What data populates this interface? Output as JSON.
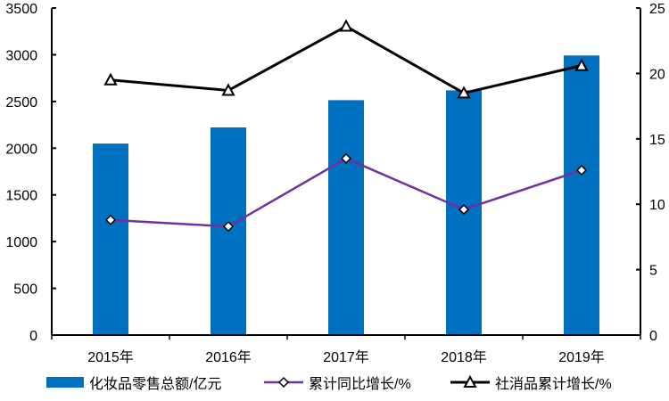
{
  "chart_data": {
    "type": "bar+line",
    "categories": [
      "2015年",
      "2016年",
      "2017年",
      "2018年",
      "2019年"
    ],
    "left_axis": {
      "ylim": [
        0,
        3500
      ],
      "ticks": [
        0,
        500,
        1000,
        1500,
        2000,
        2500,
        3000,
        3500
      ]
    },
    "right_axis": {
      "ylim": [
        0,
        25
      ],
      "ticks": [
        0,
        5,
        10,
        15,
        20,
        25
      ]
    },
    "series": [
      {
        "name": "化妆品零售总额/亿元",
        "type": "bar",
        "axis": "left",
        "color": "#0070C0",
        "values": [
          2049,
          2222,
          2514,
          2619,
          2992
        ]
      },
      {
        "name": "累计同比增长/%",
        "type": "line",
        "axis": "right",
        "marker": "diamond",
        "color": "#7030A0",
        "values": [
          8.8,
          8.3,
          13.5,
          9.6,
          12.6
        ]
      },
      {
        "name": "社消品累计增长/%",
        "type": "line",
        "axis": "right",
        "marker": "triangle",
        "color": "#000000",
        "values": [
          19.5,
          18.7,
          23.6,
          18.5,
          20.6
        ]
      }
    ],
    "grid": false,
    "legend": "bottom"
  }
}
